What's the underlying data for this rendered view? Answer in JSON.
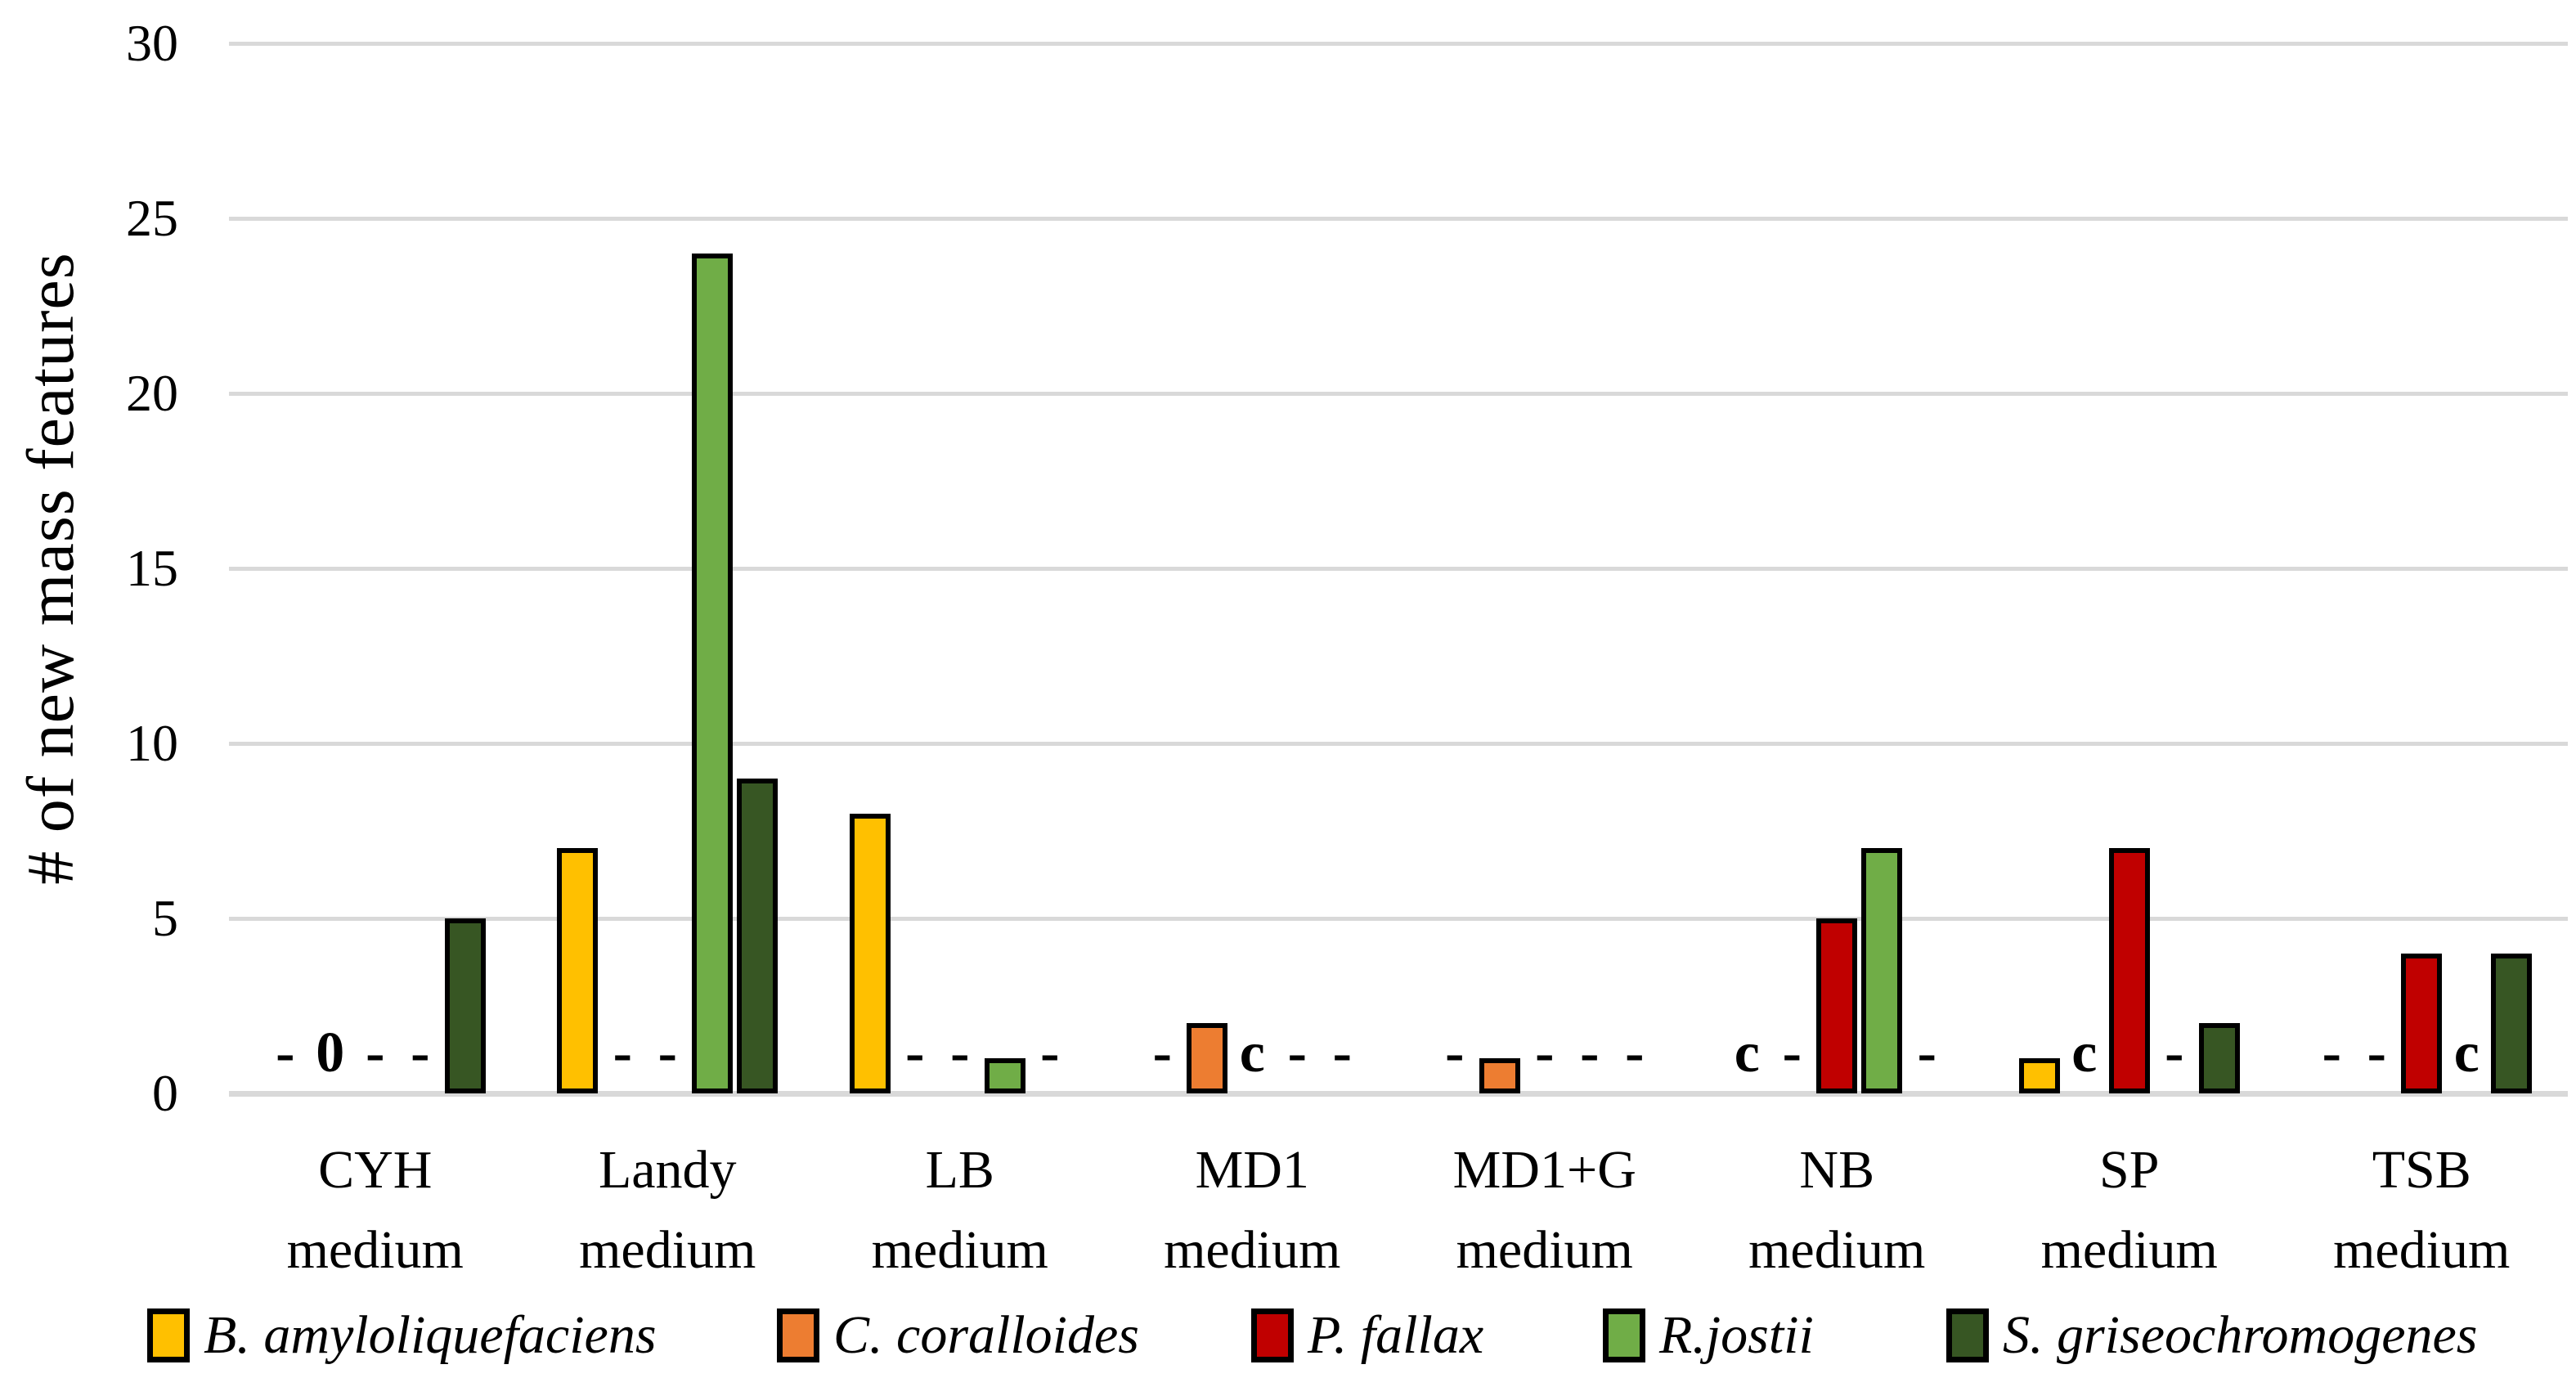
{
  "chart_data": {
    "type": "bar",
    "title": "",
    "xlabel": "",
    "ylabel": "# of new mass features",
    "ylim": [
      0,
      30
    ],
    "yticks": [
      0,
      5,
      10,
      15,
      20,
      25,
      30
    ],
    "grid": true,
    "legend_position": "bottom",
    "categories": [
      "CYH",
      "Landy",
      "LB",
      "MD1",
      "MD1+G",
      "NB",
      "SP",
      "TSB"
    ],
    "category_label_line2": "medium",
    "series": [
      {
        "name": "B. amyloliquefaciens",
        "color": "#FFC000",
        "values": [
          "-",
          7,
          8,
          "-",
          "-",
          "c",
          1,
          "-"
        ]
      },
      {
        "name": "C. coralloides",
        "color": "#ED7D31",
        "values": [
          "0",
          "-",
          "-",
          2,
          1,
          "-",
          "c",
          "-"
        ]
      },
      {
        "name": "P. fallax",
        "color": "#C00000",
        "values": [
          "-",
          "-",
          "-",
          "c",
          "-",
          5,
          7,
          4
        ]
      },
      {
        "name": "R.jostii",
        "color": "#70AD47",
        "values": [
          "-",
          24,
          1,
          "-",
          "-",
          7,
          "-",
          "c"
        ]
      },
      {
        "name": "S. griseochromogenes",
        "color": "#375623",
        "values": [
          5,
          9,
          "-",
          "-",
          "-",
          "-",
          2,
          4
        ]
      }
    ],
    "colors": {
      "gridline": "#D9D9D9",
      "axis_line": "#D9D9D9",
      "bar_border": "#000000",
      "text": "#000000",
      "background": "#FFFFFF"
    }
  }
}
